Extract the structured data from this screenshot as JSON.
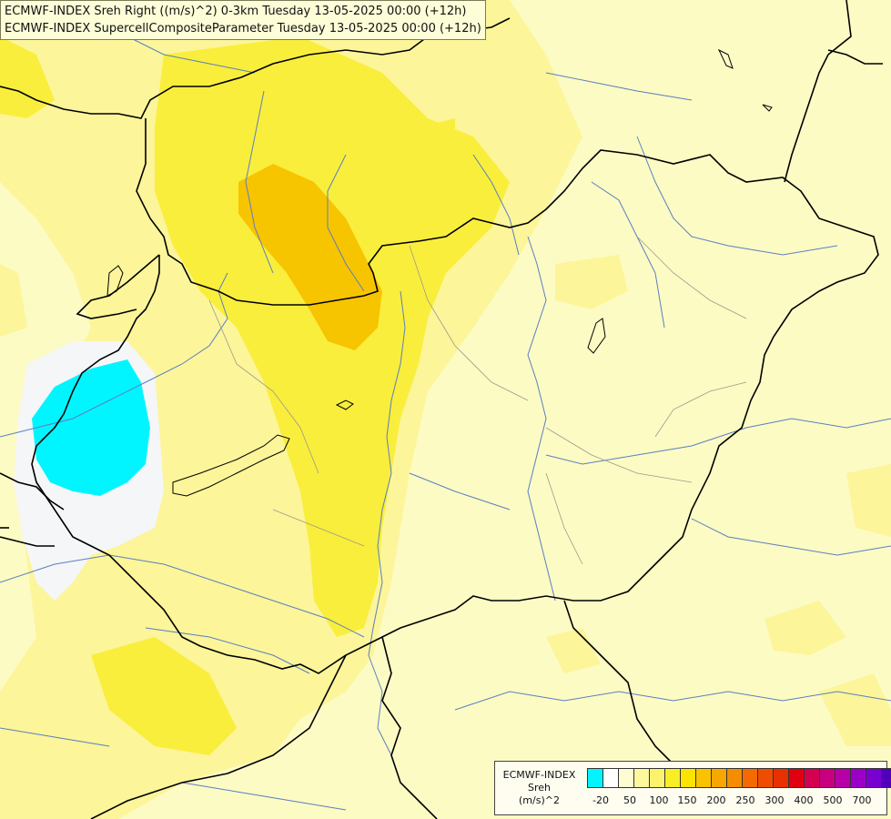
{
  "title": {
    "line1": "ECMWF-INDEX Sreh Right ((m/s)^2) 0-3km Tuesday 13-05-2025 00:00 (+12h)",
    "line2": "ECMWF-INDEX SupercellCompositeParameter Tuesday 13-05-2025 00:00 (+12h)"
  },
  "legend": {
    "source": "ECMWF-INDEX",
    "variable": "Sreh",
    "unit": "(m/s)^2",
    "swatch_colors": [
      "#00f5ff",
      "#ffffff",
      "#fefcd2",
      "#fdf79e",
      "#fbf36d",
      "#f8ee26",
      "#fde400",
      "#fbc200",
      "#f8a700",
      "#f68c00",
      "#f46a00",
      "#f04c00",
      "#e83000",
      "#e00010",
      "#d40050",
      "#c80080",
      "#b800a8",
      "#9c00c8",
      "#7800d0",
      "#5000b8",
      "#2a0096",
      "#000078"
    ],
    "tick_labels": [
      "-20",
      "50",
      "100",
      "150",
      "200",
      "250",
      "300",
      "400",
      "500",
      "700"
    ]
  },
  "colors": {
    "base_fill": "#fdfbc4",
    "light_yellow": "#fcf59a",
    "yellow": "#f9ee3c",
    "orange": "#f7c400",
    "cyan": "#00f5ff",
    "white_zone": "#f4f6f8",
    "border_line": "#000000",
    "river_line": "#5a7fc0"
  }
}
